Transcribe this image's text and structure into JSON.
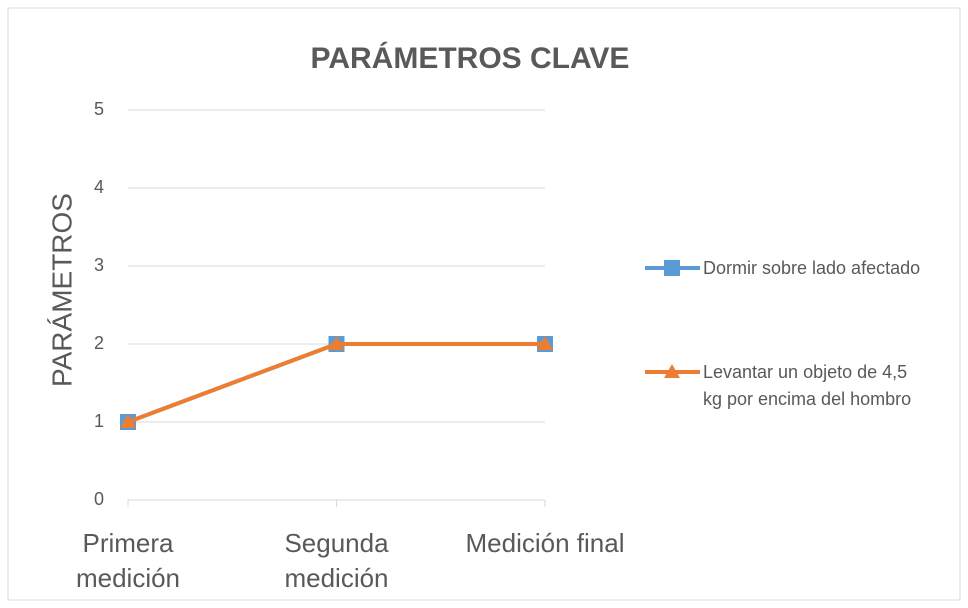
{
  "chart_data": {
    "type": "line",
    "title": "PARÁMETROS CLAVE",
    "y_label": "PARÁMETROS",
    "categories": [
      "Primera medición",
      "Segunda medición",
      "Medición final"
    ],
    "series": [
      {
        "name": "Dormir sobre lado afectado",
        "color": "#5b9bd5",
        "marker": "square",
        "values": [
          1,
          2,
          2
        ]
      },
      {
        "name": "Levantar un objeto de 4,5 kg por encima del hombro",
        "color": "#ed7d31",
        "marker": "triangle",
        "values": [
          1,
          2,
          2
        ]
      }
    ],
    "ylim": [
      0,
      5
    ],
    "yticks": [
      0,
      1,
      2,
      3,
      4,
      5
    ],
    "grid": true,
    "legend": "right"
  }
}
